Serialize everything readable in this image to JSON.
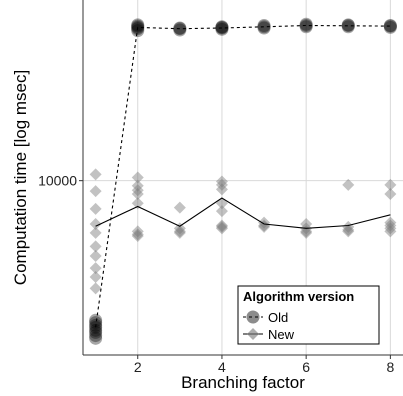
{
  "chart_data": {
    "type": "scatter",
    "xlabel": "Branching factor",
    "ylabel": "Computation time [log msec]",
    "x_ticks": [
      2,
      4,
      6,
      8
    ],
    "y_ticks": [
      10000
    ],
    "y_tick_labels": [
      "10000"
    ],
    "xlim": [
      0.7,
      8.3
    ],
    "ylim": [
      1200,
      90000
    ],
    "y_scale": "log",
    "grid": true,
    "legend": {
      "title": "Algorithm version",
      "placement": "bottom-right",
      "entries": [
        {
          "label": "Old",
          "marker": "circle",
          "line": "dashed"
        },
        {
          "label": "New",
          "marker": "diamond",
          "line": "solid"
        }
      ]
    },
    "series": [
      {
        "name": "Old",
        "marker": "circle",
        "line_style": "dashed",
        "color": "#000000",
        "points": [
          [
            1,
            1470
          ],
          [
            1,
            1520
          ],
          [
            1,
            1580
          ],
          [
            1,
            1620
          ],
          [
            1,
            1680
          ],
          [
            1,
            1720
          ],
          [
            1,
            1780
          ],
          [
            1,
            1830
          ],
          [
            2,
            62000
          ],
          [
            2,
            63500
          ],
          [
            2,
            64500
          ],
          [
            2,
            65500
          ],
          [
            2,
            66500
          ],
          [
            3,
            62500
          ],
          [
            3,
            63500
          ],
          [
            3,
            64000
          ],
          [
            4,
            63000
          ],
          [
            4,
            64000
          ],
          [
            4,
            64500
          ],
          [
            4,
            65000
          ],
          [
            5,
            64000
          ],
          [
            5,
            65000
          ],
          [
            5,
            66000
          ],
          [
            6,
            65000
          ],
          [
            6,
            66000
          ],
          [
            6,
            67000
          ],
          [
            7,
            65000
          ],
          [
            7,
            66000
          ],
          [
            7,
            66500
          ],
          [
            8,
            64500
          ],
          [
            8,
            65500
          ],
          [
            8,
            66000
          ]
        ],
        "line": [
          [
            1,
            1680
          ],
          [
            2,
            64500
          ],
          [
            3,
            63500
          ],
          [
            4,
            64000
          ],
          [
            5,
            65000
          ],
          [
            6,
            66000
          ],
          [
            7,
            65800
          ],
          [
            8,
            65500
          ]
        ]
      },
      {
        "name": "New",
        "marker": "diamond",
        "line_style": "solid",
        "color": "#777777",
        "points": [
          [
            1,
            10800
          ],
          [
            1,
            8800
          ],
          [
            1,
            7100
          ],
          [
            1,
            5900
          ],
          [
            1,
            5300
          ],
          [
            1,
            4500
          ],
          [
            1,
            4000
          ],
          [
            1,
            3450
          ],
          [
            1,
            3100
          ],
          [
            1,
            2700
          ],
          [
            2,
            10400
          ],
          [
            2,
            9400
          ],
          [
            2,
            8900
          ],
          [
            2,
            8500
          ],
          [
            2,
            7600
          ],
          [
            2,
            5400
          ],
          [
            2,
            5200
          ],
          [
            2,
            5100
          ],
          [
            3,
            7200
          ],
          [
            3,
            5600
          ],
          [
            3,
            5400
          ],
          [
            3,
            5300
          ],
          [
            4,
            9900
          ],
          [
            4,
            9500
          ],
          [
            4,
            9000
          ],
          [
            4,
            7600
          ],
          [
            4,
            6900
          ],
          [
            4,
            5800
          ],
          [
            4,
            5700
          ],
          [
            4,
            5600
          ],
          [
            5,
            6000
          ],
          [
            5,
            5800
          ],
          [
            5,
            5700
          ],
          [
            6,
            5900
          ],
          [
            6,
            5600
          ],
          [
            6,
            5400
          ],
          [
            6,
            5300
          ],
          [
            7,
            9500
          ],
          [
            7,
            5700
          ],
          [
            7,
            5500
          ],
          [
            7,
            5400
          ],
          [
            8,
            9500
          ],
          [
            8,
            8500
          ],
          [
            8,
            6000
          ],
          [
            8,
            5800
          ],
          [
            8,
            5600
          ],
          [
            8,
            5400
          ]
        ],
        "line": [
          [
            1,
            5750
          ],
          [
            2,
            7300
          ],
          [
            3,
            5750
          ],
          [
            4,
            8100
          ],
          [
            5,
            5900
          ],
          [
            6,
            5600
          ],
          [
            7,
            5800
          ],
          [
            8,
            6600
          ]
        ]
      }
    ]
  }
}
